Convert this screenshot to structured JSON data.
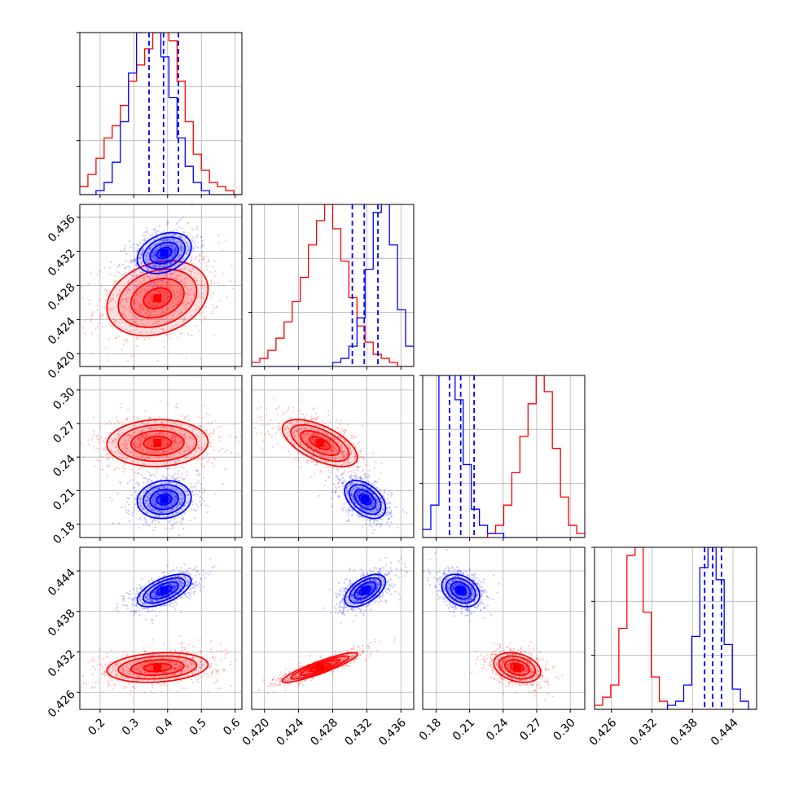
{
  "chart_data": {
    "type": "corner",
    "title": "",
    "grid": true,
    "legend": "none",
    "colors": {
      "series_a": "#ff0000",
      "series_b": "#0000ff"
    },
    "params": [
      {
        "range": [
          0.14,
          0.62
        ],
        "ticks": [
          0.2,
          0.3,
          0.4,
          0.5,
          0.6
        ],
        "tick_labels": [
          "0.2",
          "0.3",
          "0.4",
          "0.5",
          "0.6"
        ],
        "quantiles": [
          0.345,
          0.388,
          0.432
        ]
      },
      {
        "range": [
          0.4185,
          0.4375
        ],
        "ticks": [
          0.42,
          0.424,
          0.428,
          0.432,
          0.436
        ],
        "tick_labels": [
          "0.420",
          "0.424",
          "0.428",
          "0.432",
          "0.436"
        ],
        "quantiles": [
          0.4303,
          0.4317,
          0.4333
        ]
      },
      {
        "range": [
          0.168,
          0.313
        ],
        "ticks": [
          0.18,
          0.21,
          0.24,
          0.27,
          0.3
        ],
        "tick_labels": [
          "0.18",
          "0.21",
          "0.24",
          "0.27",
          "0.30"
        ],
        "quantiles": [
          0.192,
          0.202,
          0.214
        ]
      },
      {
        "range": [
          0.4235,
          0.4475
        ],
        "ticks": [
          0.426,
          0.432,
          0.438,
          0.444
        ],
        "tick_labels": [
          "0.426",
          "0.432",
          "0.438",
          "0.444"
        ],
        "quantiles": [
          0.4398,
          0.441,
          0.4423
        ]
      }
    ],
    "series": [
      {
        "color": "#ff0000",
        "hist_counts": [
          [
            2,
            5,
            9,
            14,
            17,
            22,
            28,
            32,
            36,
            40,
            43,
            38,
            28,
            18,
            10,
            6,
            3,
            2,
            1,
            0
          ],
          [
            1,
            2,
            4,
            7,
            11,
            16,
            22,
            30,
            36,
            40,
            34,
            26,
            17,
            10,
            6,
            3,
            2,
            1,
            0,
            0
          ],
          [
            0,
            0,
            0,
            0,
            0,
            0,
            0,
            0,
            1,
            3,
            8,
            16,
            25,
            33,
            40,
            36,
            22,
            10,
            3,
            1
          ],
          [
            1,
            3,
            6,
            20,
            38,
            40,
            24,
            8,
            2,
            0,
            0,
            0,
            0,
            0,
            0,
            0,
            0,
            0,
            0,
            0
          ]
        ],
        "mean": [
          0.37,
          0.4265,
          0.2525,
          0.4297
        ],
        "sigma": [
          0.075,
          0.0022,
          0.0105,
          0.0011
        ],
        "correlation": [
          [
            1.0,
            0.25,
            0.05,
            0.2
          ],
          [
            0.25,
            1.0,
            -0.6,
            0.9
          ],
          [
            0.05,
            -0.6,
            1.0,
            -0.3
          ],
          [
            0.2,
            0.9,
            -0.3,
            1.0
          ]
        ]
      },
      {
        "color": "#0000ff",
        "hist_counts": [
          [
            0,
            0,
            1,
            3,
            8,
            18,
            30,
            40,
            42,
            40,
            34,
            24,
            14,
            7,
            3,
            1,
            0,
            0,
            0,
            0
          ],
          [
            0,
            0,
            0,
            0,
            0,
            0,
            0,
            0,
            0,
            0,
            1,
            2,
            5,
            12,
            24,
            38,
            40,
            30,
            14,
            5
          ],
          [
            2,
            8,
            40,
            42,
            34,
            18,
            7,
            3,
            1,
            1,
            0,
            0,
            0,
            0,
            0,
            0,
            0,
            0,
            0,
            0
          ],
          [
            0,
            0,
            0,
            0,
            0,
            0,
            0,
            0,
            0,
            1,
            2,
            6,
            18,
            35,
            40,
            32,
            16,
            5,
            2,
            0
          ]
        ],
        "mean": [
          0.39,
          0.4318,
          0.202,
          0.4411
        ],
        "sigma": [
          0.04,
          0.0012,
          0.0085,
          0.0012
        ],
        "correlation": [
          [
            1.0,
            0.3,
            0.1,
            0.6
          ],
          [
            0.3,
            1.0,
            -0.45,
            0.55
          ],
          [
            0.1,
            -0.45,
            1.0,
            -0.3
          ],
          [
            0.6,
            0.55,
            -0.3,
            1.0
          ]
        ]
      }
    ]
  }
}
